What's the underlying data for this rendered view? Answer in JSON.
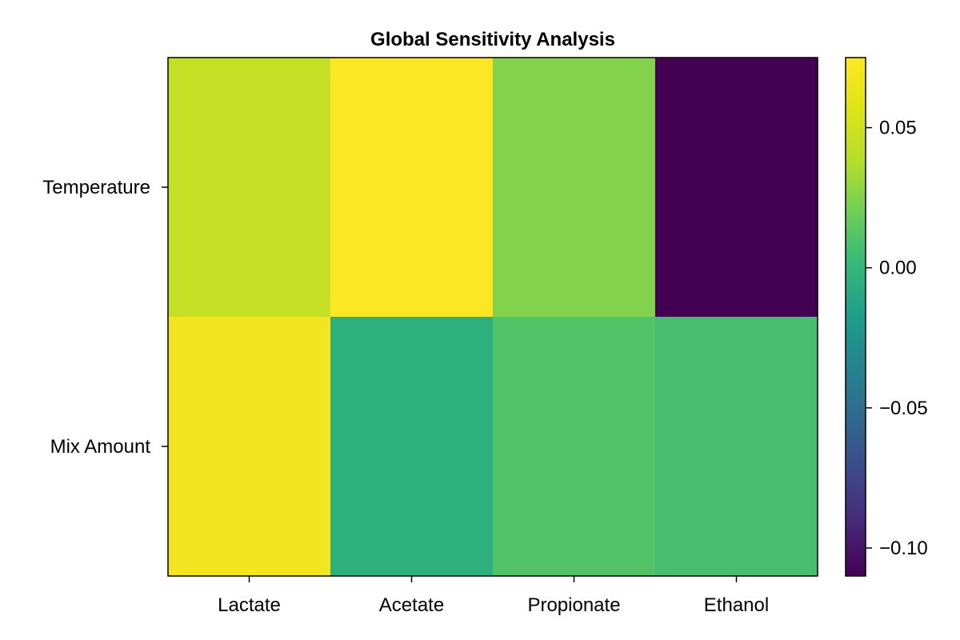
{
  "chart_data": {
    "type": "heatmap",
    "title": "Global Sensitivity Analysis",
    "xlabel": "",
    "ylabel": "",
    "x_categories": [
      "Lactate",
      "Acetate",
      "Propionate",
      "Ethanol"
    ],
    "y_categories": [
      "Temperature",
      "Mix Amount"
    ],
    "values": [
      [
        0.045,
        0.075,
        0.025,
        -0.11
      ],
      [
        0.069,
        -0.005,
        0.011,
        0.007
      ]
    ],
    "colorbar": {
      "range": [
        -0.11,
        0.075
      ],
      "ticks": [
        0.05,
        0.0,
        -0.05,
        -0.1
      ],
      "tick_labels": [
        "0.05",
        "0.00",
        "−0.05",
        "−0.10"
      ],
      "colormap": "viridis"
    }
  }
}
